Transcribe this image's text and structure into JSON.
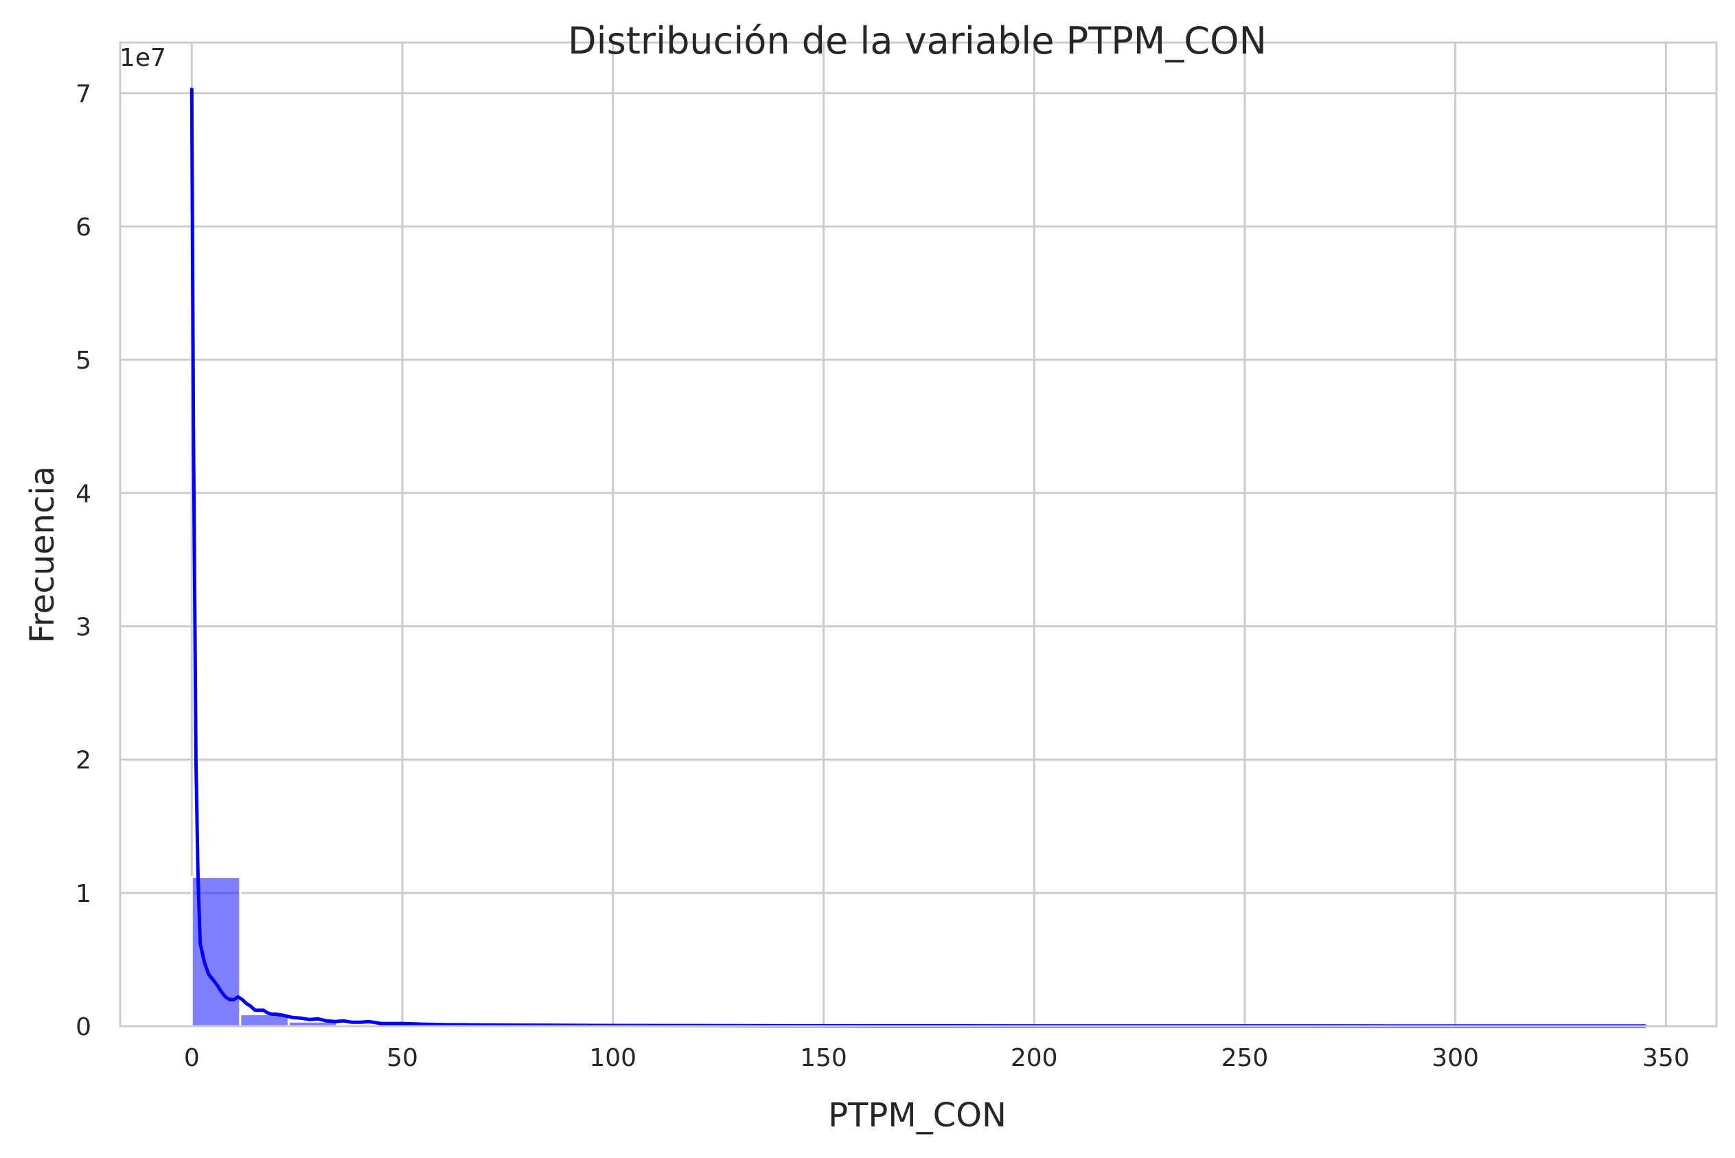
{
  "chart_data": {
    "type": "bar",
    "title": "Distribución de la variable PTPM_CON",
    "xlabel": "PTPM_CON",
    "ylabel": "Frecuencia",
    "y_offset_label": "1e7",
    "y_scale_factor": 10000000,
    "xlim": [
      -17,
      362
    ],
    "ylim": [
      0,
      7.38
    ],
    "x_ticks": [
      0,
      50,
      100,
      150,
      200,
      250,
      300,
      350
    ],
    "y_ticks": [
      0,
      1,
      2,
      3,
      4,
      5,
      6,
      7
    ],
    "x_tick_labels": [
      "0",
      "50",
      "100",
      "150",
      "200",
      "250",
      "300",
      "350"
    ],
    "y_tick_labels": [
      "0",
      "1",
      "2",
      "3",
      "4",
      "5",
      "6",
      "7"
    ],
    "grid": true,
    "histogram": {
      "color": "#0000ff",
      "bins": [
        {
          "x0": 0,
          "x1": 11.5,
          "count": 1.12
        },
        {
          "x0": 11.5,
          "x1": 23,
          "count": 0.09
        },
        {
          "x0": 23,
          "x1": 34.5,
          "count": 0.035
        },
        {
          "x0": 34.5,
          "x1": 46,
          "count": 0.015
        },
        {
          "x0": 46,
          "x1": 57.5,
          "count": 0.008
        },
        {
          "x0": 57.5,
          "x1": 69,
          "count": 0.005
        },
        {
          "x0": 69,
          "x1": 80.5,
          "count": 0.004
        },
        {
          "x0": 80.5,
          "x1": 92,
          "count": 0.003
        },
        {
          "x0": 92,
          "x1": 103.5,
          "count": 0.002
        },
        {
          "x0": 103.5,
          "x1": 115,
          "count": 0.0015
        },
        {
          "x0": 115,
          "x1": 126.5,
          "count": 0.001
        },
        {
          "x0": 126.5,
          "x1": 138,
          "count": 0.001
        },
        {
          "x0": 138,
          "x1": 149.5,
          "count": 0.0008
        },
        {
          "x0": 149.5,
          "x1": 161,
          "count": 0.0006
        },
        {
          "x0": 161,
          "x1": 172.5,
          "count": 0.0005
        },
        {
          "x0": 172.5,
          "x1": 184,
          "count": 0.0004
        },
        {
          "x0": 184,
          "x1": 195.5,
          "count": 0.0003
        },
        {
          "x0": 195.5,
          "x1": 207,
          "count": 0.0003
        },
        {
          "x0": 207,
          "x1": 218.5,
          "count": 0.0002
        },
        {
          "x0": 218.5,
          "x1": 230,
          "count": 0.0002
        },
        {
          "x0": 230,
          "x1": 241.5,
          "count": 0.0002
        },
        {
          "x0": 241.5,
          "x1": 253,
          "count": 0.0001
        },
        {
          "x0": 253,
          "x1": 264.5,
          "count": 0.0001
        },
        {
          "x0": 264.5,
          "x1": 276,
          "count": 0.0001
        },
        {
          "x0": 276,
          "x1": 287.5,
          "count": 0.0001
        },
        {
          "x0": 287.5,
          "x1": 299,
          "count": 0.0001
        },
        {
          "x0": 299,
          "x1": 310.5,
          "count": 0.0001
        },
        {
          "x0": 310.5,
          "x1": 322,
          "count": 0.0001
        },
        {
          "x0": 322,
          "x1": 333.5,
          "count": 0.0001
        },
        {
          "x0": 333.5,
          "x1": 345,
          "count": 0.0001
        }
      ]
    },
    "kde": {
      "color": "#0000ff",
      "x": [
        0,
        0.4,
        1,
        1.5,
        2,
        3,
        4,
        5,
        6,
        7,
        8,
        9,
        10,
        11,
        12,
        13,
        14,
        15,
        16,
        17,
        18,
        19,
        20,
        22,
        24,
        26,
        28,
        30,
        32,
        34,
        36,
        38,
        40,
        42,
        45,
        48,
        50,
        55,
        60,
        70,
        80,
        100,
        150,
        200,
        250,
        300,
        345
      ],
      "y": [
        7.03,
        4.5,
        2.0,
        1.1,
        0.62,
        0.48,
        0.39,
        0.35,
        0.31,
        0.26,
        0.22,
        0.2,
        0.2,
        0.22,
        0.2,
        0.17,
        0.15,
        0.12,
        0.12,
        0.12,
        0.1,
        0.09,
        0.09,
        0.08,
        0.065,
        0.06,
        0.05,
        0.055,
        0.04,
        0.035,
        0.04,
        0.03,
        0.03,
        0.035,
        0.02,
        0.02,
        0.02,
        0.015,
        0.012,
        0.01,
        0.008,
        0.005,
        0.003,
        0.002,
        0.002,
        0.001,
        0.001
      ]
    }
  }
}
